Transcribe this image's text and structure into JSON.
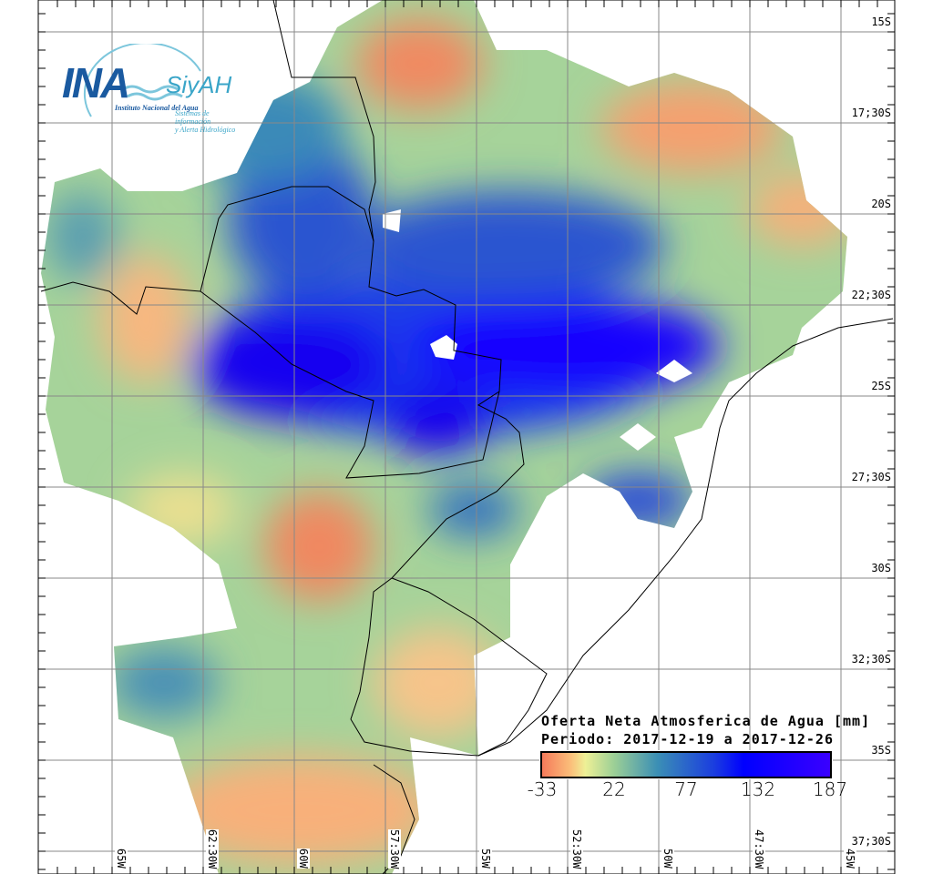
{
  "logo": {
    "ina": "INA",
    "siyah": "SiyAH",
    "institute": "Instituto Nacional del Agua",
    "system_line1": "Sistemas de información",
    "system_line2": "y Alerta Hidrológico"
  },
  "legend": {
    "title": "Oferta Neta Atmosferica de Agua [mm]",
    "period": "Periodo: 2017-12-19 a 2017-12-26",
    "ticks": [
      "-33",
      "22",
      "77",
      "132",
      "187"
    ],
    "range": [
      -33,
      187
    ]
  },
  "axes": {
    "lat_labels": [
      "15S",
      "17;30S",
      "20S",
      "22;30S",
      "25S",
      "27;30S",
      "30S",
      "32;30S",
      "35S",
      "37;30S"
    ],
    "lon_labels": [
      "65W",
      "62:30W",
      "60W",
      "57:30W",
      "55W",
      "52:30W",
      "50W",
      "47:30W",
      "45W"
    ]
  },
  "colors": {
    "low": "#f57a5a",
    "mid": "#eef096",
    "high": "#0000ff",
    "max": "#3a00ff"
  }
}
